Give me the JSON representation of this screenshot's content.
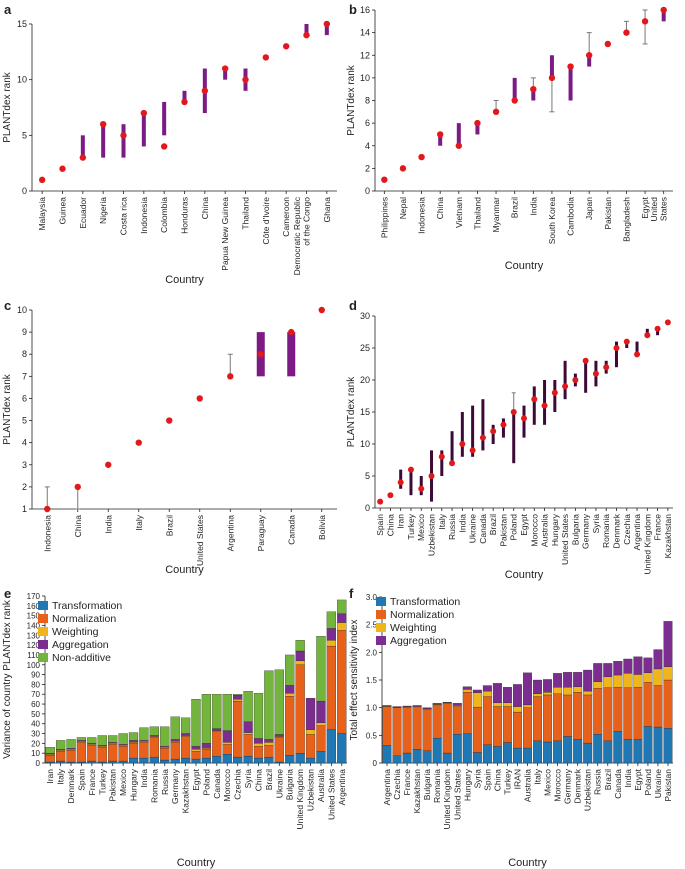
{
  "colors": {
    "bar": "#7b1b83",
    "point": "#e2191c",
    "whisker": "#777777",
    "dark_bar": "#3c0a36",
    "transformation": "#1f77b4",
    "normalization": "#e8611a",
    "weighting": "#f1b51c",
    "aggregation": "#7b2e90",
    "non_additive": "#72b43c"
  },
  "chart_data": [
    {
      "panel": "a",
      "type": "range-dot",
      "xlabel": "Country",
      "ylabel": "PLANTdex rank",
      "ylim": [
        0,
        15
      ],
      "yticks": [
        0,
        5,
        10,
        15
      ],
      "categories": [
        "Malaysia",
        "Guinea",
        "Ecuador",
        "Nigeria",
        "Costa rica",
        "Indonesia",
        "Colombia",
        "Honduras",
        "China",
        "Papua New Guinea",
        "Thailand",
        "Côte d'Ivoire",
        "Cameroon",
        "Democratic Republic of the Congo",
        "Ghana"
      ],
      "points": [
        1,
        2,
        3,
        6,
        5,
        7,
        4,
        8,
        9,
        11,
        10,
        12,
        13,
        14,
        15
      ],
      "bar_low": [
        null,
        null,
        3,
        3,
        3,
        4,
        5,
        8,
        7,
        10,
        9,
        null,
        null,
        14,
        14
      ],
      "bar_high": [
        null,
        null,
        5,
        6,
        6,
        7,
        8,
        9,
        11,
        11,
        11,
        null,
        null,
        15,
        15
      ],
      "wh_low": [
        null,
        null,
        null,
        null,
        null,
        null,
        4,
        null,
        null,
        null,
        null,
        null,
        null,
        null,
        null
      ],
      "wh_high": [
        null,
        null,
        null,
        null,
        null,
        null,
        null,
        null,
        null,
        null,
        null,
        null,
        null,
        null,
        null
      ]
    },
    {
      "panel": "b",
      "type": "range-dot",
      "xlabel": "Country",
      "ylabel": "PLANTdex rank",
      "ylim": [
        0,
        16
      ],
      "yticks": [
        0,
        2,
        4,
        6,
        8,
        10,
        12,
        14,
        16
      ],
      "categories": [
        "Philippines",
        "Nepal",
        "Indonesia",
        "China",
        "Vietnam",
        "Thailand",
        "Myanmar",
        "Brazil",
        "India",
        "South Korea",
        "Cambodia",
        "Japan",
        "Pakistan",
        "Bangladesh",
        "Egypt",
        "United States"
      ],
      "points": [
        1,
        2,
        3,
        5,
        4,
        6,
        7,
        8,
        9,
        10,
        11,
        12,
        13,
        14,
        15,
        16
      ],
      "bar_low": [
        null,
        null,
        null,
        4,
        4,
        5,
        null,
        8,
        8,
        10,
        8,
        11,
        null,
        14,
        null,
        15
      ],
      "bar_high": [
        null,
        null,
        null,
        5,
        6,
        6,
        null,
        10,
        9,
        12,
        11,
        12,
        null,
        14,
        null,
        16
      ],
      "wh_low": [
        null,
        null,
        null,
        null,
        null,
        null,
        null,
        null,
        null,
        7,
        null,
        null,
        null,
        null,
        13,
        null
      ],
      "wh_high": [
        null,
        null,
        null,
        null,
        null,
        null,
        8,
        null,
        10,
        null,
        null,
        14,
        null,
        15,
        16,
        null
      ]
    },
    {
      "panel": "c",
      "type": "range-dot",
      "xlabel": "Country",
      "ylabel": "PLANTdex rank",
      "ylim": [
        1,
        10
      ],
      "yticks": [
        1,
        2,
        3,
        4,
        5,
        6,
        7,
        8,
        9,
        10
      ],
      "categories": [
        "Indonesia",
        "China",
        "India",
        "Italy",
        "Brazil",
        "United States",
        "Argentina",
        "Paraguay",
        "Canada",
        "Bolivia"
      ],
      "points": [
        1,
        2,
        3,
        4,
        5,
        6,
        7,
        8,
        9,
        10
      ],
      "bar_low": [
        null,
        null,
        null,
        null,
        null,
        null,
        null,
        7,
        7,
        null
      ],
      "bar_high": [
        null,
        null,
        null,
        null,
        null,
        null,
        null,
        9,
        9,
        null
      ],
      "wh_low": [
        null,
        1,
        null,
        null,
        null,
        null,
        null,
        null,
        null,
        null
      ],
      "wh_high": [
        2,
        null,
        null,
        null,
        null,
        null,
        8,
        null,
        null,
        null
      ]
    },
    {
      "panel": "d",
      "type": "range-dot",
      "xlabel": "Country",
      "ylabel": "PLANTdex rank",
      "ylim": [
        0,
        30
      ],
      "yticks": [
        0,
        5,
        10,
        15,
        20,
        25,
        30
      ],
      "categories": [
        "Spain",
        "China",
        "Iran",
        "Turkey",
        "Mexico",
        "Uzbekistan",
        "Italy",
        "Russia",
        "India",
        "Ukraine",
        "Canada",
        "Brazil",
        "Pakistan",
        "Poland",
        "Egypt",
        "Morocco",
        "Australia",
        "Hungary",
        "United States",
        "Bulgaria",
        "Germany",
        "Syria",
        "Romania",
        "Denmark",
        "Czechia",
        "Argentina",
        "United Kingdom",
        "France",
        "Kazakhstan"
      ],
      "points": [
        1,
        2,
        4,
        6,
        3,
        5,
        8,
        7,
        10,
        9,
        11,
        12,
        13,
        15,
        14,
        17,
        16,
        18,
        19,
        20,
        23,
        21,
        22,
        25,
        26,
        24,
        27,
        28,
        29
      ],
      "bar_low": [
        null,
        null,
        3,
        2,
        2,
        1,
        5,
        7,
        8,
        8,
        9,
        10,
        11,
        7,
        11,
        13,
        13,
        15,
        17,
        19,
        18,
        19,
        21,
        22,
        25,
        24,
        27,
        27,
        null
      ],
      "bar_high": [
        null,
        null,
        6,
        6,
        5,
        9,
        9,
        12,
        15,
        16,
        17,
        13,
        14,
        15,
        16,
        19,
        20,
        20,
        23,
        21,
        23,
        23,
        23,
        26,
        26,
        26,
        28,
        28,
        null
      ],
      "wh_low": [
        null,
        null,
        null,
        null,
        null,
        null,
        null,
        null,
        null,
        null,
        null,
        null,
        null,
        null,
        null,
        null,
        null,
        null,
        null,
        null,
        null,
        null,
        null,
        null,
        null,
        null,
        null,
        null,
        null
      ],
      "wh_high": [
        null,
        null,
        null,
        null,
        null,
        null,
        null,
        null,
        null,
        null,
        null,
        null,
        null,
        18,
        null,
        null,
        null,
        null,
        null,
        null,
        null,
        null,
        null,
        null,
        null,
        null,
        null,
        null,
        null
      ]
    },
    {
      "panel": "e",
      "type": "stacked-bar",
      "xlabel": "Country",
      "ylabel": "Variance of country PLANTdex rank",
      "ylim": [
        0,
        170
      ],
      "yticks": [
        0,
        10,
        20,
        30,
        40,
        50,
        60,
        70,
        80,
        90,
        100,
        110,
        120,
        130,
        140,
        150,
        160,
        170
      ],
      "legend": [
        "Transformation",
        "Normalization",
        "Weighting",
        "Aggregation",
        "Non-additive"
      ],
      "categories": [
        "Iran",
        "Italy",
        "Denmark",
        "Spain",
        "France",
        "Turkey",
        "Pakistan",
        "Mexico",
        "Hungary",
        "India",
        "Romania",
        "Russia",
        "Germany",
        "Kazakhstan",
        "Egypt",
        "Poland",
        "Canada",
        "Morocco",
        "Czechia",
        "Syria",
        "China",
        "Brazil",
        "Ukraine",
        "Bulgaria",
        "United Kingdom",
        "Uzbekistan",
        "Australia",
        "United States",
        "Argentina"
      ],
      "series": [
        {
          "name": "Transformation",
          "values": [
            1,
            2,
            1,
            1,
            2,
            1,
            2,
            2,
            5,
            5,
            6,
            3,
            4,
            5,
            4,
            5,
            7,
            9,
            6,
            7,
            5,
            6,
            1,
            8,
            10,
            5,
            12,
            34,
            30
          ]
        },
        {
          "name": "Normalization",
          "values": [
            7,
            10,
            12,
            20,
            16,
            15,
            17,
            15,
            15,
            16,
            20,
            12,
            17,
            22,
            8,
            9,
            25,
            10,
            57,
            22,
            12,
            12,
            25,
            60,
            90,
            24,
            26,
            85,
            105
          ]
        },
        {
          "name": "Weighting",
          "values": [
            1,
            1,
            1,
            1,
            1,
            1,
            1,
            1,
            1,
            1,
            1,
            1,
            1,
            1,
            2,
            1,
            1,
            2,
            2,
            2,
            3,
            3,
            1,
            3,
            4,
            5,
            3,
            6,
            8
          ]
        },
        {
          "name": "Aggregation",
          "values": [
            1,
            1,
            1,
            1,
            1,
            1,
            1,
            1,
            2,
            1,
            1,
            1,
            2,
            2,
            3,
            5,
            2,
            12,
            4,
            11,
            5,
            3,
            2,
            8,
            10,
            32,
            22,
            12,
            9
          ]
        },
        {
          "name": "Non-additive",
          "values": [
            6,
            9,
            9,
            3,
            6,
            10,
            7,
            11,
            8,
            13,
            9,
            20,
            23,
            16,
            48,
            50,
            35,
            37,
            1,
            31,
            46,
            70,
            66,
            31,
            11,
            0,
            66,
            17,
            14
          ]
        }
      ]
    },
    {
      "panel": "f",
      "type": "stacked-bar",
      "xlabel": "Country",
      "ylabel": "Total effect sensitivity index",
      "ylim": [
        0,
        3.0
      ],
      "yticks": [
        0,
        0.5,
        1.0,
        1.5,
        2.0,
        2.5,
        3.0
      ],
      "tick_labels": [
        "0",
        "0.5",
        "1.0",
        "1.5",
        "2.0",
        "2.5",
        "3.0"
      ],
      "legend": [
        "Transformation",
        "Normalization",
        "Weighting",
        "Aggregation"
      ],
      "categories": [
        "Argentina",
        "Czechia",
        "France",
        "Kazakhstan",
        "Bulgaria",
        "Romania",
        "United Kingdom",
        "United States",
        "Hungary",
        "Syria",
        "Spain",
        "China",
        "Turkey",
        "IRAN",
        "Australia",
        "Italy",
        "Mexico",
        "Morocco",
        "Germany",
        "Denmark",
        "Uzbekistan",
        "Russia",
        "Brazil",
        "Canada",
        "India",
        "Egypt",
        "Poland",
        "Ukraine",
        "Pakistan"
      ],
      "series": [
        {
          "name": "Transformation",
          "values": [
            0.32,
            0.13,
            0.18,
            0.25,
            0.22,
            0.45,
            0.18,
            0.52,
            0.53,
            0.19,
            0.33,
            0.3,
            0.37,
            0.27,
            0.27,
            0.4,
            0.38,
            0.4,
            0.48,
            0.43,
            0.36,
            0.52,
            0.4,
            0.57,
            0.43,
            0.43,
            0.66,
            0.65,
            0.63
          ]
        },
        {
          "name": "Normalization",
          "values": [
            0.7,
            0.87,
            0.83,
            0.75,
            0.75,
            0.6,
            0.9,
            0.5,
            0.75,
            0.82,
            0.87,
            0.72,
            0.65,
            0.65,
            0.73,
            0.8,
            0.85,
            0.85,
            0.75,
            0.85,
            0.87,
            0.83,
            0.96,
            0.8,
            0.93,
            0.94,
            0.8,
            0.75,
            0.87
          ]
        },
        {
          "name": "Weighting",
          "values": [
            0.01,
            0.01,
            0.01,
            0.02,
            0.01,
            0.01,
            0.01,
            0.02,
            0.05,
            0.26,
            0.1,
            0.07,
            0.07,
            0.1,
            0.05,
            0.05,
            0.05,
            0.12,
            0.14,
            0.1,
            0.07,
            0.12,
            0.2,
            0.22,
            0.26,
            0.23,
            0.17,
            0.3,
            0.24
          ]
        },
        {
          "name": "Aggregation",
          "values": [
            0.01,
            0.01,
            0.01,
            0.02,
            0.02,
            0.02,
            0.01,
            0.04,
            0.05,
            0.05,
            0.1,
            0.35,
            0.28,
            0.4,
            0.58,
            0.25,
            0.23,
            0.25,
            0.27,
            0.26,
            0.38,
            0.33,
            0.24,
            0.25,
            0.26,
            0.32,
            0.27,
            0.35,
            0.82
          ]
        }
      ]
    }
  ]
}
